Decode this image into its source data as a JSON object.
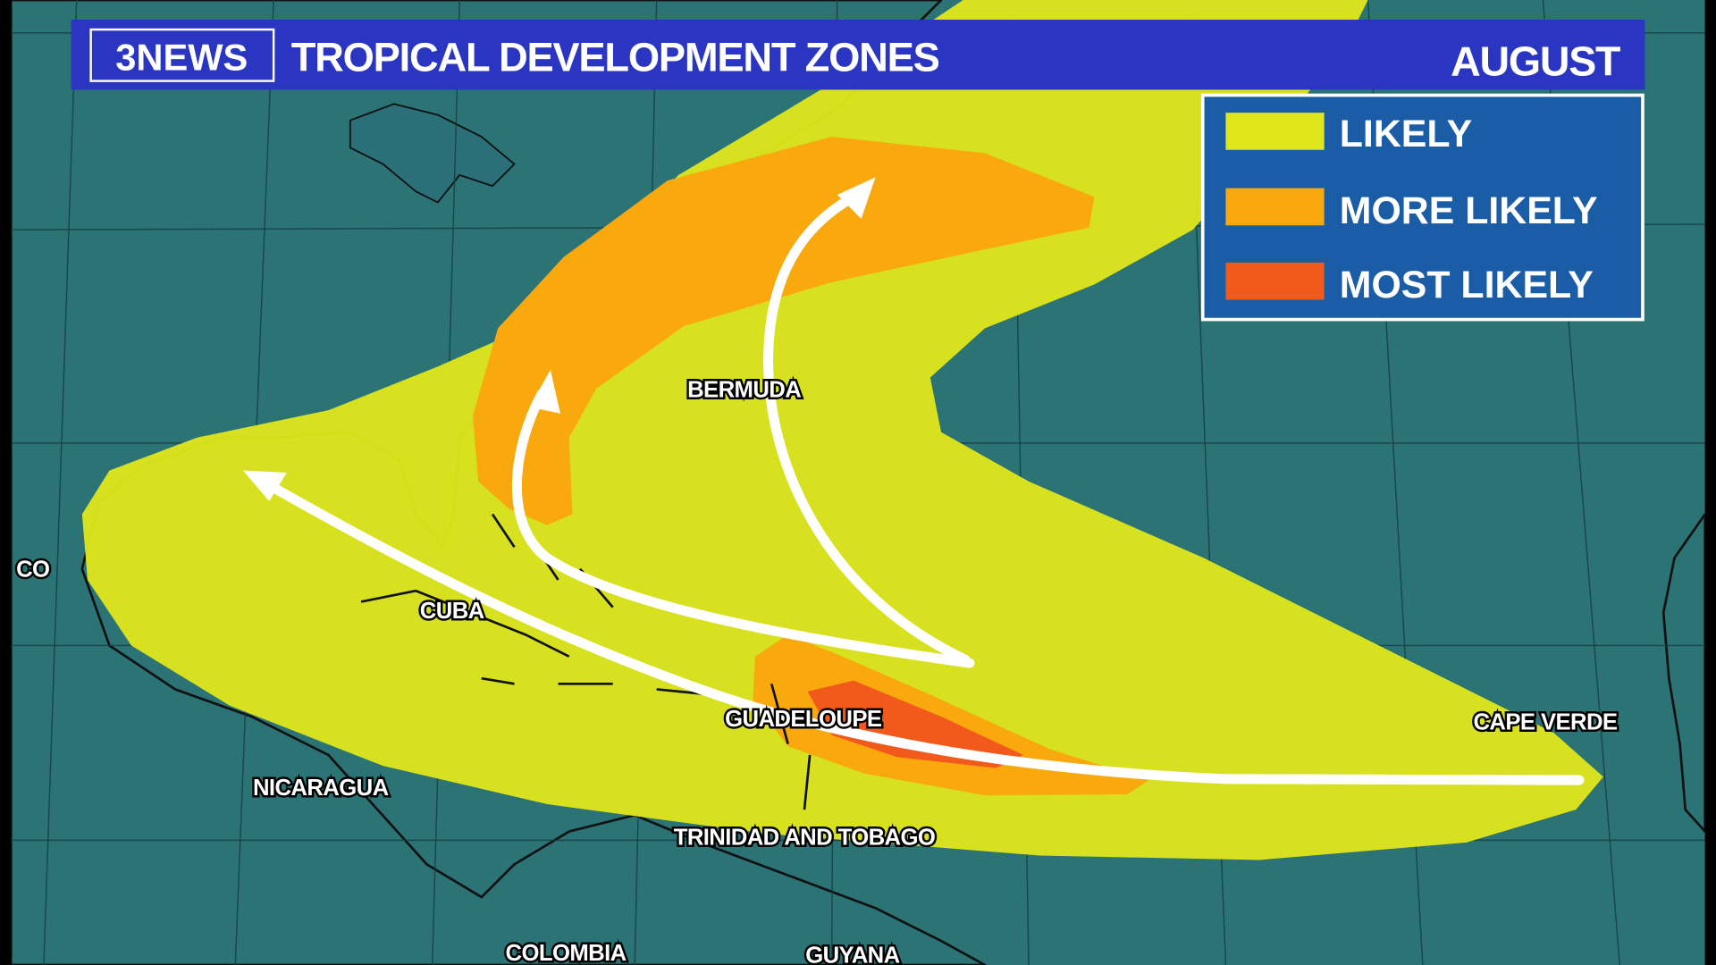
{
  "header": {
    "logo": "3NEWS",
    "title": "TROPICAL DEVELOPMENT ZONES",
    "month": "AUGUST"
  },
  "legend": {
    "items": [
      {
        "label": "LIKELY",
        "color": "#dfe61c"
      },
      {
        "label": "MORE LIKELY",
        "color": "#f9a80e"
      },
      {
        "label": "MOST LIKELY",
        "color": "#f25a1c"
      }
    ]
  },
  "map": {
    "ocean_color": "#2b7375",
    "land_color": "#6e6a4c",
    "labels": {
      "bermuda": "BERMUDA",
      "cuba": "CUBA",
      "guadeloupe": "GUADELOUPE",
      "cape_verde": "CAPE VERDE",
      "nicaragua": "NICARAGUA",
      "trinidad": "TRINIDAD AND TOBAGO",
      "colombia": "COLOMBIA",
      "guyana": "GUYANA",
      "mexico_partial": "CO"
    }
  }
}
